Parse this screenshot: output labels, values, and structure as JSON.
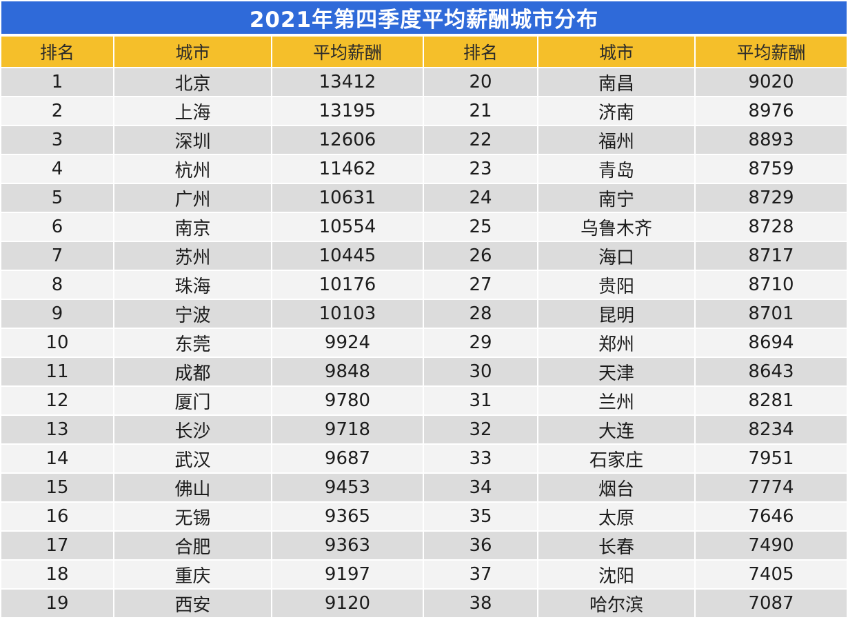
{
  "title": "2021年第四季度平均薪酬城市分布",
  "colors": {
    "title_bg": "#2f6ad9",
    "header_bg": "#f5bf2a",
    "row_odd": "#dcdcdc",
    "row_even": "#f3f3f3"
  },
  "headers": [
    "排名",
    "城市",
    "平均薪酬",
    "排名",
    "城市",
    "平均薪酬"
  ],
  "rows": [
    {
      "rank_l": "1",
      "city_l": "北京",
      "salary_l": "13412",
      "rank_r": "20",
      "city_r": "南昌",
      "salary_r": "9020"
    },
    {
      "rank_l": "2",
      "city_l": "上海",
      "salary_l": "13195",
      "rank_r": "21",
      "city_r": "济南",
      "salary_r": "8976"
    },
    {
      "rank_l": "3",
      "city_l": "深圳",
      "salary_l": "12606",
      "rank_r": "22",
      "city_r": "福州",
      "salary_r": "8893"
    },
    {
      "rank_l": "4",
      "city_l": "杭州",
      "salary_l": "11462",
      "rank_r": "23",
      "city_r": "青岛",
      "salary_r": "8759"
    },
    {
      "rank_l": "5",
      "city_l": "广州",
      "salary_l": "10631",
      "rank_r": "24",
      "city_r": "南宁",
      "salary_r": "8729"
    },
    {
      "rank_l": "6",
      "city_l": "南京",
      "salary_l": "10554",
      "rank_r": "25",
      "city_r": "乌鲁木齐",
      "salary_r": "8728"
    },
    {
      "rank_l": "7",
      "city_l": "苏州",
      "salary_l": "10445",
      "rank_r": "26",
      "city_r": "海口",
      "salary_r": "8717"
    },
    {
      "rank_l": "8",
      "city_l": "珠海",
      "salary_l": "10176",
      "rank_r": "27",
      "city_r": "贵阳",
      "salary_r": "8710"
    },
    {
      "rank_l": "9",
      "city_l": "宁波",
      "salary_l": "10103",
      "rank_r": "28",
      "city_r": "昆明",
      "salary_r": "8701"
    },
    {
      "rank_l": "10",
      "city_l": "东莞",
      "salary_l": "9924",
      "rank_r": "29",
      "city_r": "郑州",
      "salary_r": "8694"
    },
    {
      "rank_l": "11",
      "city_l": "成都",
      "salary_l": "9848",
      "rank_r": "30",
      "city_r": "天津",
      "salary_r": "8643"
    },
    {
      "rank_l": "12",
      "city_l": "厦门",
      "salary_l": "9780",
      "rank_r": "31",
      "city_r": "兰州",
      "salary_r": "8281"
    },
    {
      "rank_l": "13",
      "city_l": "长沙",
      "salary_l": "9718",
      "rank_r": "32",
      "city_r": "大连",
      "salary_r": "8234"
    },
    {
      "rank_l": "14",
      "city_l": "武汉",
      "salary_l": "9687",
      "rank_r": "33",
      "city_r": "石家庄",
      "salary_r": "7951"
    },
    {
      "rank_l": "15",
      "city_l": "佛山",
      "salary_l": "9453",
      "rank_r": "34",
      "city_r": "烟台",
      "salary_r": "7774"
    },
    {
      "rank_l": "16",
      "city_l": "无锡",
      "salary_l": "9365",
      "rank_r": "35",
      "city_r": "太原",
      "salary_r": "7646"
    },
    {
      "rank_l": "17",
      "city_l": "合肥",
      "salary_l": "9363",
      "rank_r": "36",
      "city_r": "长春",
      "salary_r": "7490"
    },
    {
      "rank_l": "18",
      "city_l": "重庆",
      "salary_l": "9197",
      "rank_r": "37",
      "city_r": "沈阳",
      "salary_r": "7405"
    },
    {
      "rank_l": "19",
      "city_l": "西安",
      "salary_l": "9120",
      "rank_r": "38",
      "city_r": "哈尔滨",
      "salary_r": "7087"
    }
  ]
}
